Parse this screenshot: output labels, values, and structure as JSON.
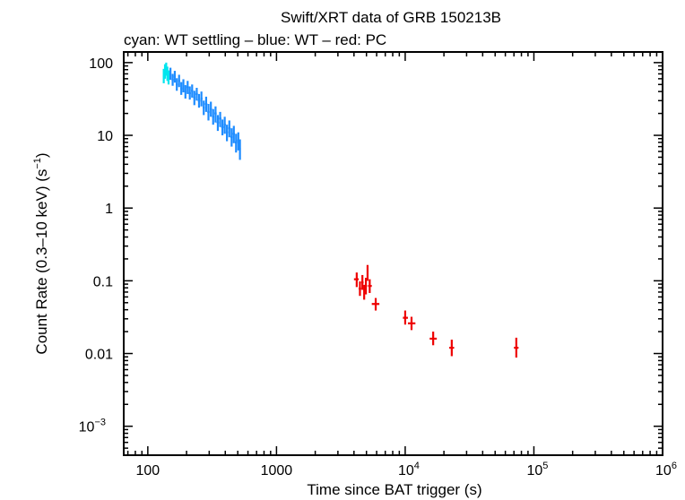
{
  "chart_data": {
    "type": "scatter",
    "title": "Swift/XRT data of GRB 150213B",
    "subtitle": "cyan: WT settling – blue: WT – red: PC",
    "xlabel": "Time since BAT trigger (s)",
    "ylabel": "Count Rate (0.3–10 keV) (s",
    "ylabel_exp": "−1",
    "ylabel_end": ")",
    "xscale": "log",
    "yscale": "log",
    "xlim": [
      65,
      1000000
    ],
    "ylim": [
      0.0004,
      140
    ],
    "x_ticks": [
      {
        "value": 100,
        "base": "100",
        "exp": ""
      },
      {
        "value": 1000,
        "base": "1000",
        "exp": ""
      },
      {
        "value": 10000,
        "base": "10",
        "exp": "4"
      },
      {
        "value": 100000,
        "base": "10",
        "exp": "5"
      },
      {
        "value": 1000000,
        "base": "10",
        "exp": "6"
      }
    ],
    "y_ticks": [
      {
        "value": 100,
        "base": "100",
        "exp": ""
      },
      {
        "value": 10,
        "base": "10",
        "exp": ""
      },
      {
        "value": 1,
        "base": "1",
        "exp": ""
      },
      {
        "value": 0.1,
        "base": "0.1",
        "exp": ""
      },
      {
        "value": 0.01,
        "base": "0.01",
        "exp": ""
      },
      {
        "value": 0.001,
        "base": "10",
        "exp": "−3"
      }
    ],
    "series": [
      {
        "name": "WT settling",
        "color": "#00e5ee",
        "points": [
          {
            "x": 133,
            "y": 65,
            "xlo": 131,
            "xhi": 135,
            "ylo": 52,
            "yhi": 82
          },
          {
            "x": 136,
            "y": 75,
            "xlo": 134,
            "xhi": 138,
            "ylo": 60,
            "yhi": 95
          },
          {
            "x": 139,
            "y": 82,
            "xlo": 137,
            "xhi": 141,
            "ylo": 66,
            "yhi": 100
          },
          {
            "x": 142,
            "y": 70,
            "xlo": 140,
            "xhi": 144,
            "ylo": 56,
            "yhi": 88
          },
          {
            "x": 145,
            "y": 62,
            "xlo": 143,
            "xhi": 147,
            "ylo": 50,
            "yhi": 78
          }
        ]
      },
      {
        "name": "WT",
        "color": "#1e8cff",
        "points": [
          {
            "x": 150,
            "y": 70,
            "xlo": 148,
            "xhi": 152,
            "ylo": 58,
            "yhi": 85
          },
          {
            "x": 156,
            "y": 58,
            "xlo": 153,
            "xhi": 159,
            "ylo": 48,
            "yhi": 70
          },
          {
            "x": 162,
            "y": 64,
            "xlo": 159,
            "xhi": 165,
            "ylo": 53,
            "yhi": 77
          },
          {
            "x": 168,
            "y": 50,
            "xlo": 165,
            "xhi": 171,
            "ylo": 41,
            "yhi": 61
          },
          {
            "x": 175,
            "y": 56,
            "xlo": 172,
            "xhi": 178,
            "ylo": 46,
            "yhi": 68
          },
          {
            "x": 182,
            "y": 44,
            "xlo": 179,
            "xhi": 185,
            "ylo": 36,
            "yhi": 54
          },
          {
            "x": 189,
            "y": 48,
            "xlo": 186,
            "xhi": 192,
            "ylo": 39,
            "yhi": 59
          },
          {
            "x": 196,
            "y": 40,
            "xlo": 193,
            "xhi": 199,
            "ylo": 32,
            "yhi": 49
          },
          {
            "x": 204,
            "y": 46,
            "xlo": 200,
            "xhi": 208,
            "ylo": 37,
            "yhi": 56
          },
          {
            "x": 212,
            "y": 38,
            "xlo": 208,
            "xhi": 216,
            "ylo": 31,
            "yhi": 47
          },
          {
            "x": 221,
            "y": 41,
            "xlo": 217,
            "xhi": 225,
            "ylo": 33,
            "yhi": 50
          },
          {
            "x": 230,
            "y": 33,
            "xlo": 226,
            "xhi": 234,
            "ylo": 26,
            "yhi": 41
          },
          {
            "x": 240,
            "y": 37,
            "xlo": 235,
            "xhi": 245,
            "ylo": 30,
            "yhi": 45
          },
          {
            "x": 250,
            "y": 30,
            "xlo": 245,
            "xhi": 255,
            "ylo": 24,
            "yhi": 37
          },
          {
            "x": 261,
            "y": 32,
            "xlo": 256,
            "xhi": 266,
            "ylo": 25,
            "yhi": 40
          },
          {
            "x": 272,
            "y": 24,
            "xlo": 267,
            "xhi": 277,
            "ylo": 19,
            "yhi": 30
          },
          {
            "x": 284,
            "y": 27,
            "xlo": 278,
            "xhi": 290,
            "ylo": 21,
            "yhi": 34
          },
          {
            "x": 296,
            "y": 21,
            "xlo": 290,
            "xhi": 302,
            "ylo": 16,
            "yhi": 27
          },
          {
            "x": 309,
            "y": 23,
            "xlo": 303,
            "xhi": 315,
            "ylo": 18,
            "yhi": 29
          },
          {
            "x": 322,
            "y": 18,
            "xlo": 316,
            "xhi": 328,
            "ylo": 14,
            "yhi": 23
          },
          {
            "x": 336,
            "y": 20,
            "xlo": 329,
            "xhi": 343,
            "ylo": 15,
            "yhi": 25
          },
          {
            "x": 350,
            "y": 15,
            "xlo": 343,
            "xhi": 357,
            "ylo": 11.5,
            "yhi": 19
          },
          {
            "x": 365,
            "y": 17,
            "xlo": 357,
            "xhi": 373,
            "ylo": 13,
            "yhi": 21
          },
          {
            "x": 380,
            "y": 13,
            "xlo": 372,
            "xhi": 388,
            "ylo": 10,
            "yhi": 16.5
          },
          {
            "x": 396,
            "y": 14,
            "xlo": 388,
            "xhi": 404,
            "ylo": 10.5,
            "yhi": 18
          },
          {
            "x": 412,
            "y": 11,
            "xlo": 404,
            "xhi": 420,
            "ylo": 8.3,
            "yhi": 14
          },
          {
            "x": 430,
            "y": 12.5,
            "xlo": 421,
            "xhi": 439,
            "ylo": 9.4,
            "yhi": 16
          },
          {
            "x": 448,
            "y": 9.5,
            "xlo": 439,
            "xhi": 457,
            "ylo": 7.0,
            "yhi": 12.5
          },
          {
            "x": 466,
            "y": 10.5,
            "xlo": 457,
            "xhi": 475,
            "ylo": 7.8,
            "yhi": 13.5
          },
          {
            "x": 485,
            "y": 8,
            "xlo": 475,
            "xhi": 495,
            "ylo": 5.8,
            "yhi": 10.5
          },
          {
            "x": 505,
            "y": 8.5,
            "xlo": 495,
            "xhi": 515,
            "ylo": 6.2,
            "yhi": 11
          },
          {
            "x": 520,
            "y": 6.5,
            "xlo": 512,
            "xhi": 528,
            "ylo": 4.6,
            "yhi": 8.8
          }
        ]
      },
      {
        "name": "PC",
        "color": "#ee0000",
        "points": [
          {
            "x": 4200,
            "y": 0.105,
            "xlo": 4000,
            "xhi": 4350,
            "ylo": 0.082,
            "yhi": 0.13
          },
          {
            "x": 4450,
            "y": 0.078,
            "xlo": 4350,
            "xhi": 4550,
            "ylo": 0.062,
            "yhi": 0.098
          },
          {
            "x": 4650,
            "y": 0.095,
            "xlo": 4550,
            "xhi": 4750,
            "ylo": 0.075,
            "yhi": 0.12
          },
          {
            "x": 4800,
            "y": 0.07,
            "xlo": 4750,
            "xhi": 4850,
            "ylo": 0.055,
            "yhi": 0.088
          },
          {
            "x": 4950,
            "y": 0.085,
            "xlo": 4850,
            "xhi": 5050,
            "ylo": 0.065,
            "yhi": 0.11
          },
          {
            "x": 5100,
            "y": 0.13,
            "xlo": 5050,
            "xhi": 5150,
            "ylo": 0.1,
            "yhi": 0.165
          },
          {
            "x": 5300,
            "y": 0.085,
            "xlo": 5150,
            "xhi": 5500,
            "ylo": 0.068,
            "yhi": 0.105
          },
          {
            "x": 5900,
            "y": 0.048,
            "xlo": 5500,
            "xhi": 6300,
            "ylo": 0.039,
            "yhi": 0.058
          },
          {
            "x": 10000,
            "y": 0.031,
            "xlo": 9600,
            "xhi": 10500,
            "ylo": 0.025,
            "yhi": 0.039
          },
          {
            "x": 11200,
            "y": 0.026,
            "xlo": 10500,
            "xhi": 12000,
            "ylo": 0.021,
            "yhi": 0.032
          },
          {
            "x": 16500,
            "y": 0.016,
            "xlo": 15500,
            "xhi": 17600,
            "ylo": 0.013,
            "yhi": 0.02
          },
          {
            "x": 23000,
            "y": 0.012,
            "xlo": 22000,
            "xhi": 24000,
            "ylo": 0.0092,
            "yhi": 0.0155
          },
          {
            "x": 73000,
            "y": 0.012,
            "xlo": 70000,
            "xhi": 76000,
            "ylo": 0.0088,
            "yhi": 0.0165
          }
        ]
      }
    ]
  }
}
